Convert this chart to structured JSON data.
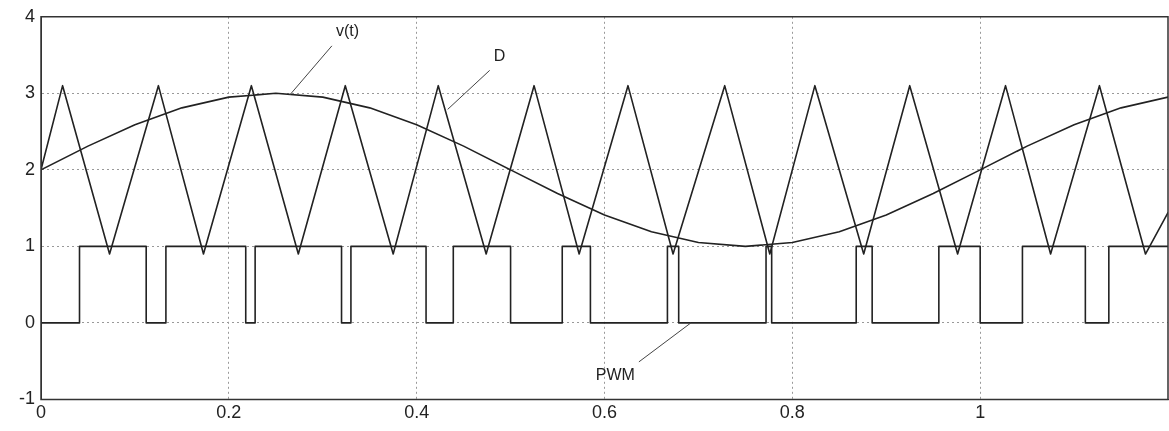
{
  "chart_data": {
    "type": "line",
    "xlim": [
      0,
      1.2
    ],
    "ylim": [
      -1,
      4
    ],
    "xticks": [
      0,
      0.2,
      0.4,
      0.6,
      0.8,
      1
    ],
    "yticks": [
      -1,
      0,
      1,
      2,
      3,
      4
    ],
    "grid": true,
    "legend": false,
    "marker": "none",
    "line_style": "solid",
    "series": [
      {
        "color": "#222222",
        "x": [
          0,
          0.05,
          0.1,
          0.15,
          0.2,
          0.25,
          0.3,
          0.35,
          0.4,
          0.45,
          0.5,
          0.55,
          0.6,
          0.65,
          0.7,
          0.75,
          0.8,
          0.85,
          0.9,
          0.95,
          1,
          1.05,
          1.1,
          1.15,
          1.2
        ],
        "values": [
          2,
          2.31,
          2.59,
          2.81,
          2.95,
          3,
          2.95,
          2.81,
          2.59,
          2.31,
          2,
          1.69,
          1.41,
          1.19,
          1.05,
          1,
          1.05,
          1.19,
          1.41,
          1.69,
          2,
          2.31,
          2.59,
          2.81,
          2.95
        ]
      },
      {
        "color": "#222222",
        "x": [
          0,
          0.023,
          0.073,
          0.125,
          0.173,
          0.224,
          0.274,
          0.324,
          0.375,
          0.423,
          0.474,
          0.525,
          0.573,
          0.625,
          0.673,
          0.728,
          0.776,
          0.824,
          0.876,
          0.925,
          0.976,
          1.027,
          1.075,
          1.127,
          1.176,
          1.2
        ],
        "values": [
          2,
          3.1,
          0.9,
          3.1,
          0.9,
          3.1,
          0.9,
          3.1,
          0.9,
          3.1,
          0.9,
          3.1,
          0.9,
          3.1,
          0.9,
          3.1,
          0.9,
          3.1,
          0.9,
          3.1,
          0.9,
          3.1,
          0.9,
          3.1,
          0.9,
          1.44
        ]
      },
      {
        "type": "step",
        "color": "#222222",
        "x": [
          0,
          0.041,
          0.112,
          0.133,
          0.218,
          0.228,
          0.32,
          0.33,
          0.41,
          0.439,
          0.5,
          0.555,
          0.585,
          0.667,
          0.679,
          0.772,
          0.778,
          0.868,
          0.885,
          0.956,
          1.0,
          1.045,
          1.112,
          1.137,
          1.2
        ],
        "values": [
          0,
          1,
          0,
          1,
          0,
          1,
          0,
          1,
          0,
          1,
          0,
          1,
          0,
          1,
          0,
          1,
          0,
          1,
          0,
          1,
          0,
          1,
          0,
          1,
          1
        ]
      }
    ],
    "annotations": [
      {
        "text": "v(t)",
        "x": 0.265,
        "y": 2.98
      },
      {
        "text": "D",
        "x": 0.433,
        "y": 2.79
      },
      {
        "text": "PWM",
        "x": 0.692,
        "y": 0
      }
    ]
  }
}
